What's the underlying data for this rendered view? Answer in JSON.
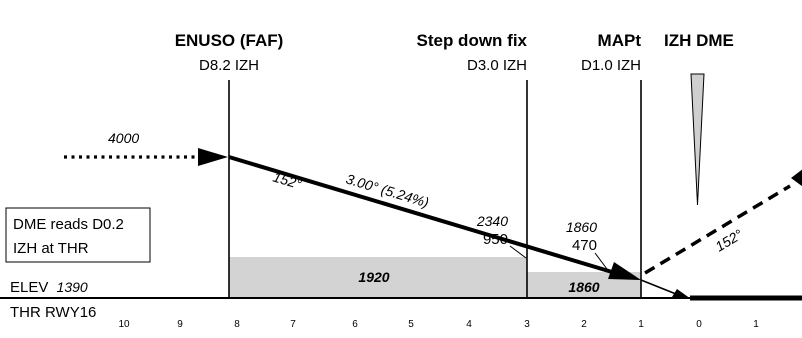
{
  "fixes": {
    "faf": {
      "name": "ENUSO (FAF)",
      "dist": "D8.2 IZH"
    },
    "stepdown": {
      "name": "Step down fix",
      "dist": "D3.0 IZH"
    },
    "mapt": {
      "name": "MAPt",
      "dist": "D1.0 IZH"
    },
    "dme": {
      "name": "IZH DME"
    }
  },
  "altitudes": {
    "initial": "4000",
    "stepdown_alt": "2340",
    "stepdown_hgt": "950",
    "mapt_alt": "1860",
    "mapt_hgt": "470"
  },
  "track": {
    "inbound_course": "152°",
    "glide": "3.00° (5.24%)",
    "missed_course": "152°"
  },
  "dme_note": {
    "line1": "DME reads D0.2",
    "line2": "IZH at THR"
  },
  "elevation": {
    "prefix": "ELEV",
    "value": "1390"
  },
  "threshold": "THR RWY16",
  "obstacle_clearance": {
    "segment1": "1920",
    "segment2": "1860"
  },
  "distance_ticks": [
    "10",
    "9",
    "8",
    "7",
    "6",
    "5",
    "4",
    "3",
    "2",
    "1",
    "0",
    "1"
  ],
  "colors": {
    "ink": "#000000",
    "shading": "#d3d3d3",
    "dme_cone": "#cfcfcf"
  }
}
